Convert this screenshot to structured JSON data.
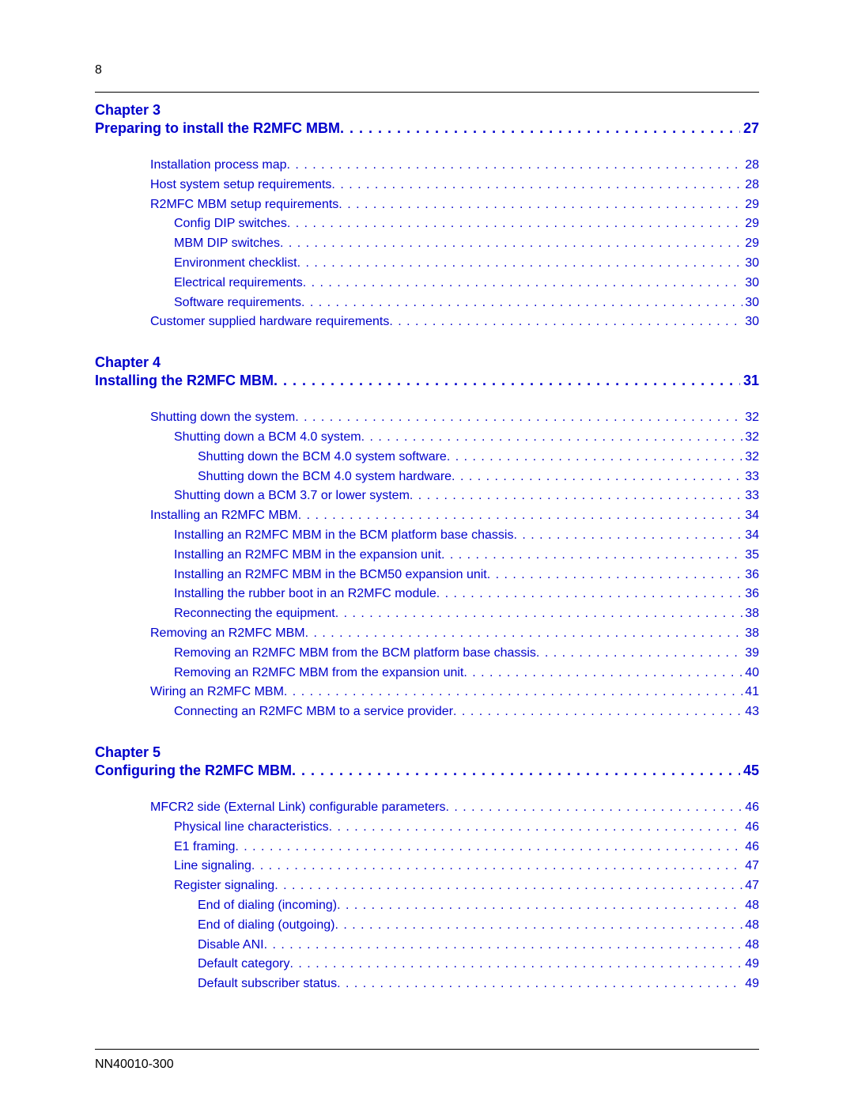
{
  "page_number_top": "8",
  "doc_id": "NN40010-300",
  "dots_long": " . . . . . . . . . . . . . . . . . . . . . . . . . . . . . . . . . . . . . . . . . . . . . . . . . . . . . . . . . . . . . . . . . . . . . . . . . . . . . . . . . . . . . . . . . . . .",
  "chapters": [
    {
      "heading": "Chapter 3",
      "title": "Preparing to install the R2MFC MBM",
      "page": "27",
      "entries": [
        {
          "text": "Installation process map ",
          "page": "28",
          "indent": 0
        },
        {
          "text": "Host system setup requirements ",
          "page": "28",
          "indent": 0
        },
        {
          "text": "R2MFC MBM setup requirements ",
          "page": "29",
          "indent": 0
        },
        {
          "text": "Config DIP switches ",
          "page": "29",
          "indent": 1
        },
        {
          "text": "MBM DIP switches ",
          "page": "29",
          "indent": 1
        },
        {
          "text": "Environment checklist ",
          "page": "30",
          "indent": 1
        },
        {
          "text": "Electrical requirements ",
          "page": "30",
          "indent": 1
        },
        {
          "text": "Software requirements ",
          "page": "30",
          "indent": 1
        },
        {
          "text": "Customer supplied hardware requirements  ",
          "page": "30",
          "indent": 0
        }
      ]
    },
    {
      "heading": "Chapter 4",
      "title": "Installing the R2MFC MBM ",
      "page": "31",
      "entries": [
        {
          "text": "Shutting down the system ",
          "page": "32",
          "indent": 0
        },
        {
          "text": "Shutting down a BCM 4.0 system ",
          "page": "32",
          "indent": 1
        },
        {
          "text": "Shutting down the BCM 4.0 system software ",
          "page": "32",
          "indent": 2
        },
        {
          "text": "Shutting down the BCM 4.0 system hardware  ",
          "page": "33",
          "indent": 2
        },
        {
          "text": "Shutting down a BCM 3.7 or lower system ",
          "page": "33",
          "indent": 1
        },
        {
          "text": "Installing an R2MFC MBM ",
          "page": "34",
          "indent": 0
        },
        {
          "text": "Installing an R2MFC MBM in the BCM platform base chassis ",
          "page": "34",
          "indent": 1
        },
        {
          "text": "Installing an R2MFC MBM in the expansion unit  ",
          "page": "35",
          "indent": 1
        },
        {
          "text": "Installing an R2MFC MBM in the BCM50 expansion unit ",
          "page": "36",
          "indent": 1
        },
        {
          "text": "Installing the rubber boot in an R2MFC module  ",
          "page": "36",
          "indent": 1
        },
        {
          "text": "Reconnecting the equipment  ",
          "page": "38",
          "indent": 1
        },
        {
          "text": "Removing an R2MFC MBM ",
          "page": "38",
          "indent": 0
        },
        {
          "text": "Removing an R2MFC MBM from the BCM platform base chassis ",
          "page": "39",
          "indent": 1
        },
        {
          "text": "Removing an R2MFC MBM from the expansion unit  ",
          "page": "40",
          "indent": 1
        },
        {
          "text": "Wiring an R2MFC MBM ",
          "page": "41",
          "indent": 0
        },
        {
          "text": "Connecting an R2MFC MBM to a service provider ",
          "page": "43",
          "indent": 1
        }
      ]
    },
    {
      "heading": "Chapter 5",
      "title": "Configuring the R2MFC MBM ",
      "page": "45",
      "entries": [
        {
          "text": "MFCR2 side (External Link) configurable parameters ",
          "page": "46",
          "indent": 0
        },
        {
          "text": "Physical line characteristics ",
          "page": "46",
          "indent": 1
        },
        {
          "text": "E1 framing ",
          "page": "46",
          "indent": 1
        },
        {
          "text": "Line signaling ",
          "page": "47",
          "indent": 1
        },
        {
          "text": "Register signaling ",
          "page": "47",
          "indent": 1
        },
        {
          "text": "End of dialing (incoming)  ",
          "page": "48",
          "indent": 2
        },
        {
          "text": "End of dialing (outgoing) ",
          "page": "48",
          "indent": 2
        },
        {
          "text": "Disable ANI ",
          "page": "48",
          "indent": 2
        },
        {
          "text": "Default category ",
          "page": "49",
          "indent": 2
        },
        {
          "text": "Default subscriber status ",
          "page": "49",
          "indent": 2
        }
      ]
    }
  ]
}
